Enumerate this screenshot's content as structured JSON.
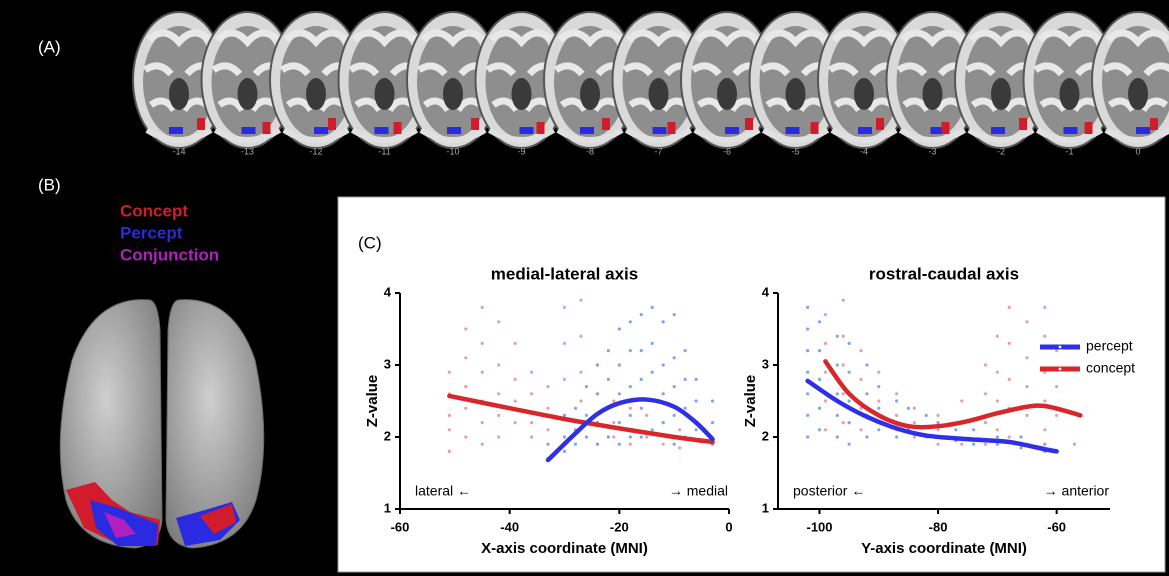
{
  "panel_labels": [
    "(A)",
    "(B)",
    "(C)"
  ],
  "panel_a": {
    "slice_labels": [
      -14,
      -13,
      -12,
      -11,
      -10,
      -9,
      -8,
      -7,
      -6,
      -5,
      -4,
      -3,
      -2,
      -1,
      0
    ]
  },
  "panel_b": {
    "legend": [
      {
        "label": "Concept",
        "color": "#d01c2b"
      },
      {
        "label": "Percept",
        "color": "#2a2ae0"
      },
      {
        "label": "Conjunction",
        "color": "#b020c0"
      }
    ]
  },
  "chart_data": [
    {
      "type": "scatter",
      "title": "medial-lateral axis",
      "x_label": "X-axis coordinate (MNI)",
      "y_label": "Z-value",
      "annotations": [
        "lateral ←",
        "→ medial"
      ],
      "xlim": [
        -60,
        0
      ],
      "xticks": [
        -60,
        -40,
        -20,
        0
      ],
      "ylim": [
        1,
        4
      ],
      "yticks": [
        1,
        2,
        3,
        4
      ],
      "series": [
        {
          "kind": "points",
          "color": "#e9a0a0",
          "x": [
            -51,
            -51,
            -51,
            -51,
            -51,
            -48,
            -48,
            -48,
            -48,
            -48,
            -45,
            -45,
            -45,
            -45,
            -45,
            -45,
            -42,
            -42,
            -42,
            -42,
            -42,
            -39,
            -39,
            -39,
            -39,
            -36,
            -36,
            -36,
            -36,
            -33,
            -33,
            -33,
            -30,
            -30,
            -30,
            -30,
            -27,
            -27,
            -27,
            -27,
            -27,
            -24,
            -24,
            -24,
            -24,
            -21,
            -21,
            -21,
            -18,
            -18,
            -18,
            -15,
            -15,
            -12,
            -12,
            -9,
            -9
          ],
          "values": [
            2.9,
            2.6,
            2.3,
            2.1,
            1.8,
            3.5,
            3.1,
            2.7,
            2.4,
            2.0,
            3.8,
            3.3,
            2.9,
            2.5,
            2.2,
            1.9,
            3.6,
            3.0,
            2.6,
            2.3,
            2.0,
            3.3,
            2.8,
            2.5,
            2.2,
            2.9,
            2.6,
            2.2,
            2.0,
            2.7,
            2.4,
            2.1,
            3.8,
            3.3,
            2.8,
            2.3,
            3.9,
            3.4,
            2.9,
            2.5,
            2.2,
            3.0,
            2.6,
            2.2,
            1.9,
            2.5,
            2.2,
            2.0,
            2.4,
            2.1,
            1.9,
            2.3,
            2.0,
            2.2,
            1.9,
            2.1,
            1.85
          ]
        },
        {
          "kind": "points",
          "color": "#7ea6ee",
          "x": [
            -33,
            -33,
            -30,
            -30,
            -30,
            -28,
            -28,
            -28,
            -26,
            -26,
            -26,
            -24,
            -24,
            -24,
            -24,
            -22,
            -22,
            -22,
            -22,
            -20,
            -20,
            -20,
            -20,
            -20,
            -18,
            -18,
            -18,
            -18,
            -18,
            -16,
            -16,
            -16,
            -16,
            -16,
            -14,
            -14,
            -14,
            -14,
            -14,
            -12,
            -12,
            -12,
            -12,
            -10,
            -10,
            -10,
            -10,
            -10,
            -8,
            -8,
            -8,
            -8,
            -6,
            -6,
            -6,
            -3,
            -3,
            -3
          ],
          "values": [
            1.7,
            1.9,
            2.0,
            2.3,
            1.8,
            2.4,
            2.1,
            1.9,
            2.7,
            2.3,
            2.0,
            3.0,
            2.6,
            2.2,
            1.9,
            3.2,
            2.8,
            2.4,
            2.0,
            3.5,
            3.0,
            2.6,
            2.2,
            1.9,
            3.6,
            3.2,
            2.7,
            2.3,
            2.0,
            3.7,
            3.2,
            2.8,
            2.4,
            2.0,
            3.8,
            3.3,
            2.9,
            2.5,
            2.1,
            3.6,
            3.0,
            2.6,
            2.2,
            3.7,
            3.1,
            2.7,
            2.3,
            1.9,
            3.2,
            2.8,
            2.4,
            2.0,
            2.8,
            2.5,
            2.1,
            2.5,
            2.2,
            1.9
          ]
        },
        {
          "kind": "fit",
          "color": "#d8262a",
          "x": [
            -51,
            -40,
            -30,
            -20,
            -10,
            -3
          ],
          "values": [
            2.57,
            2.4,
            2.25,
            2.12,
            2.0,
            1.93
          ]
        },
        {
          "kind": "fit",
          "color": "#2f2fe8",
          "x": [
            -33,
            -28,
            -24,
            -20,
            -15,
            -10,
            -6,
            -3
          ],
          "values": [
            1.68,
            2.05,
            2.32,
            2.47,
            2.52,
            2.42,
            2.2,
            1.97
          ]
        }
      ]
    },
    {
      "type": "scatter",
      "title": "rostral-caudal axis",
      "x_label": "Y-axis coordinate (MNI)",
      "y_label": "Z-value",
      "annotations": [
        "posterior ←",
        "→ anterior"
      ],
      "xlim": [
        -107,
        -51
      ],
      "xticks": [
        -100,
        -80,
        -60
      ],
      "ylim": [
        1,
        4
      ],
      "yticks": [
        1,
        2,
        3,
        4
      ],
      "legend": "upper right",
      "series": [
        {
          "kind": "points",
          "color": "#7ea6ee",
          "x": [
            -102,
            -102,
            -102,
            -102,
            -102,
            -102,
            -102,
            -100,
            -100,
            -100,
            -100,
            -100,
            -97,
            -97,
            -97,
            -97,
            -97,
            -95,
            -95,
            -95,
            -95,
            -95,
            -92,
            -92,
            -92,
            -92,
            -90,
            -90,
            -90,
            -87,
            -87,
            -87,
            -85,
            -85,
            -82,
            -82,
            -80,
            -80,
            -77,
            -77,
            -74,
            -74,
            -70,
            -70,
            -66,
            -66,
            -62,
            -62
          ],
          "values": [
            3.8,
            3.5,
            3.2,
            2.9,
            2.6,
            2.3,
            2.0,
            3.6,
            3.2,
            2.8,
            2.4,
            2.1,
            3.4,
            3.0,
            2.6,
            2.3,
            2.0,
            3.3,
            2.9,
            2.5,
            2.2,
            1.9,
            3.0,
            2.6,
            2.3,
            2.0,
            2.7,
            2.4,
            2.1,
            2.5,
            2.2,
            2.0,
            2.4,
            2.1,
            2.3,
            2.0,
            2.2,
            2.0,
            2.1,
            1.95,
            2.1,
            1.9,
            2.0,
            1.9,
            2.0,
            1.85,
            1.9,
            1.8
          ]
        },
        {
          "kind": "points",
          "color": "#e9a0a0",
          "x": [
            -99,
            -99,
            -99,
            -99,
            -99,
            -96,
            -96,
            -96,
            -96,
            -96,
            -93,
            -93,
            -93,
            -93,
            -90,
            -90,
            -90,
            -87,
            -87,
            -87,
            -84,
            -84,
            -84,
            -80,
            -80,
            -80,
            -76,
            -76,
            -76,
            -72,
            -72,
            -72,
            -72,
            -70,
            -70,
            -70,
            -70,
            -68,
            -68,
            -68,
            -68,
            -68,
            -65,
            -65,
            -65,
            -65,
            -65,
            -62,
            -62,
            -62,
            -62,
            -62,
            -60,
            -60,
            -60,
            -57
          ],
          "values": [
            3.7,
            3.3,
            2.9,
            2.5,
            2.1,
            3.9,
            3.4,
            3.0,
            2.6,
            2.2,
            3.2,
            2.8,
            2.4,
            2.1,
            2.9,
            2.5,
            2.2,
            2.6,
            2.3,
            2.1,
            2.4,
            2.2,
            2.0,
            2.3,
            2.1,
            1.9,
            2.5,
            2.2,
            1.9,
            3.0,
            2.6,
            2.2,
            1.9,
            3.4,
            2.9,
            2.5,
            2.1,
            3.8,
            3.3,
            2.8,
            2.4,
            2.0,
            3.6,
            3.1,
            2.7,
            2.3,
            1.9,
            3.8,
            3.4,
            2.9,
            2.5,
            2.1,
            3.2,
            2.7,
            2.3,
            1.9
          ]
        },
        {
          "kind": "fit",
          "name": "percept",
          "color": "#2f2fe8",
          "x": [
            -102,
            -97,
            -92,
            -87,
            -82,
            -75,
            -68,
            -62,
            -60
          ],
          "values": [
            2.78,
            2.5,
            2.28,
            2.12,
            2.02,
            1.97,
            1.93,
            1.83,
            1.8
          ]
        },
        {
          "kind": "fit",
          "name": "concept",
          "color": "#d8262a",
          "x": [
            -99,
            -95,
            -90,
            -85,
            -80,
            -75,
            -70,
            -65,
            -62,
            -58,
            -56
          ],
          "values": [
            3.05,
            2.6,
            2.3,
            2.15,
            2.15,
            2.22,
            2.33,
            2.42,
            2.43,
            2.35,
            2.3
          ]
        }
      ]
    }
  ]
}
